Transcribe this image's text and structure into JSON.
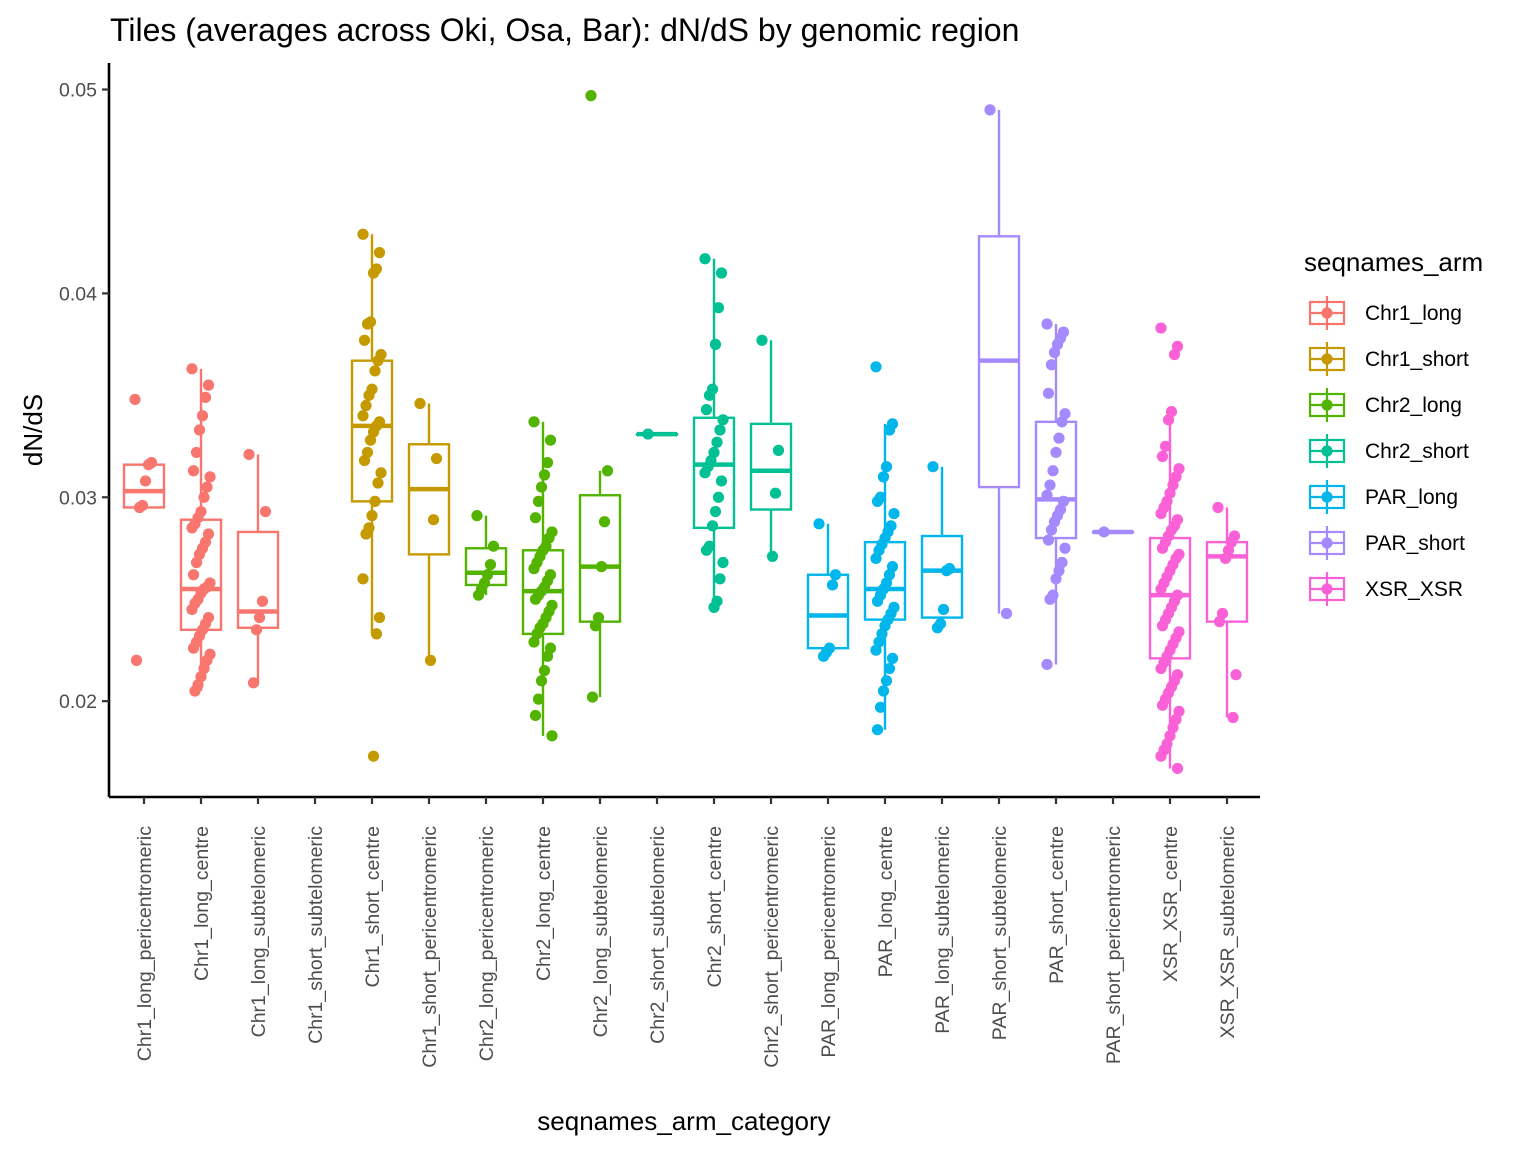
{
  "chart_data": {
    "type": "boxplot",
    "title": "Tiles (averages across Oki, Osa, Bar): dN/dS by genomic region",
    "xlabel": "seqnames_arm_category",
    "ylabel": "dN/dS",
    "ylim": [
      0.0153,
      0.0513
    ],
    "yticks": [
      0.02,
      0.03,
      0.04,
      0.05
    ],
    "ytick_labels": [
      "0.02",
      "0.03",
      "0.04",
      "0.05"
    ],
    "grid": false,
    "legend": {
      "title": "seqnames_arm",
      "position": "right",
      "entries": [
        {
          "name": "Chr1_long",
          "color": "#F8766D"
        },
        {
          "name": "Chr1_short",
          "color": "#C49A00"
        },
        {
          "name": "Chr2_long",
          "color": "#53B400"
        },
        {
          "name": "Chr2_short",
          "color": "#00C094"
        },
        {
          "name": "PAR_long",
          "color": "#00B6EB"
        },
        {
          "name": "PAR_short",
          "color": "#A58AFF"
        },
        {
          "name": "XSR_XSR",
          "color": "#FB61D7"
        }
      ]
    },
    "categories": [
      {
        "label": "Chr1_long_pericentromeric",
        "group": "Chr1_long",
        "box": {
          "lower": 0.0294,
          "q1": 0.0295,
          "median": 0.0303,
          "q3": 0.0316,
          "upper": 0.0316
        },
        "points": [
          0.0348,
          0.0317,
          0.0316,
          0.0308,
          0.0296,
          0.0295,
          0.022
        ]
      },
      {
        "label": "Chr1_long_centre",
        "group": "Chr1_long",
        "box": {
          "lower": 0.0205,
          "q1": 0.0235,
          "median": 0.0255,
          "q3": 0.0289,
          "upper": 0.0363
        },
        "points": [
          0.0363,
          0.0355,
          0.0349,
          0.034,
          0.0333,
          0.0322,
          0.0313,
          0.031,
          0.0305,
          0.03,
          0.0293,
          0.029,
          0.0287,
          0.0285,
          0.0282,
          0.0278,
          0.0275,
          0.0272,
          0.0268,
          0.0262,
          0.0258,
          0.0256,
          0.0255,
          0.0253,
          0.025,
          0.0248,
          0.0245,
          0.0241,
          0.0238,
          0.0235,
          0.0232,
          0.0229,
          0.0226,
          0.0223,
          0.022,
          0.0216,
          0.0212,
          0.0208,
          0.0205
        ]
      },
      {
        "label": "Chr1_long_subtelomeric",
        "group": "Chr1_long",
        "box": {
          "lower": 0.0209,
          "q1": 0.0236,
          "median": 0.0244,
          "q3": 0.0283,
          "upper": 0.0321
        },
        "points": [
          0.0321,
          0.0293,
          0.0249,
          0.0241,
          0.0235,
          0.0209
        ]
      },
      {
        "label": "Chr1_short_subtelomeric",
        "group": "Chr1_short",
        "box": null,
        "points": []
      },
      {
        "label": "Chr1_short_centre",
        "group": "Chr1_short",
        "box": {
          "lower": 0.0233,
          "q1": 0.0298,
          "median": 0.0335,
          "q3": 0.0367,
          "upper": 0.0429
        },
        "points": [
          0.0429,
          0.042,
          0.0412,
          0.041,
          0.0386,
          0.0385,
          0.0377,
          0.037,
          0.0367,
          0.0362,
          0.0353,
          0.035,
          0.0345,
          0.034,
          0.0337,
          0.0335,
          0.0332,
          0.0328,
          0.0322,
          0.0318,
          0.0312,
          0.0307,
          0.0298,
          0.0291,
          0.0285,
          0.0282,
          0.026,
          0.0241,
          0.0233,
          0.0173
        ]
      },
      {
        "label": "Chr1_short_pericentromeric",
        "group": "Chr1_short",
        "box": {
          "lower": 0.022,
          "q1": 0.0272,
          "median": 0.0304,
          "q3": 0.0326,
          "upper": 0.0346
        },
        "points": [
          0.0346,
          0.0319,
          0.0289,
          0.022
        ]
      },
      {
        "label": "Chr2_long_pericentromeric",
        "group": "Chr2_long",
        "box": {
          "lower": 0.0252,
          "q1": 0.0257,
          "median": 0.0263,
          "q3": 0.0275,
          "upper": 0.0291
        },
        "points": [
          0.0291,
          0.0276,
          0.0267,
          0.0262,
          0.0258,
          0.0255,
          0.0252
        ]
      },
      {
        "label": "Chr2_long_centre",
        "group": "Chr2_long",
        "box": {
          "lower": 0.0183,
          "q1": 0.0233,
          "median": 0.0254,
          "q3": 0.0274,
          "upper": 0.0337
        },
        "points": [
          0.0337,
          0.0328,
          0.0317,
          0.0311,
          0.0305,
          0.0298,
          0.029,
          0.0283,
          0.028,
          0.0276,
          0.0274,
          0.0271,
          0.0268,
          0.0265,
          0.0262,
          0.0259,
          0.0256,
          0.0254,
          0.0252,
          0.025,
          0.0247,
          0.0244,
          0.0241,
          0.0238,
          0.0236,
          0.0233,
          0.0229,
          0.0226,
          0.0222,
          0.0215,
          0.021,
          0.0201,
          0.0193,
          0.0183
        ]
      },
      {
        "label": "Chr2_long_subtelomeric",
        "group": "Chr2_long",
        "box": {
          "lower": 0.0202,
          "q1": 0.0239,
          "median": 0.0266,
          "q3": 0.0301,
          "upper": 0.0313
        },
        "points": [
          0.0497,
          0.0313,
          0.0288,
          0.0266,
          0.0241,
          0.0237,
          0.0202
        ]
      },
      {
        "label": "Chr2_short_subtelomeric",
        "group": "Chr2_short",
        "box": {
          "lower": 0.0331,
          "q1": 0.0331,
          "median": 0.0331,
          "q3": 0.0331,
          "upper": 0.0331
        },
        "points": [
          0.0331
        ]
      },
      {
        "label": "Chr2_short_centre",
        "group": "Chr2_short",
        "box": {
          "lower": 0.0246,
          "q1": 0.0285,
          "median": 0.0316,
          "q3": 0.0339,
          "upper": 0.0417
        },
        "points": [
          0.0417,
          0.041,
          0.0393,
          0.0375,
          0.0353,
          0.035,
          0.0343,
          0.0338,
          0.0333,
          0.0327,
          0.0322,
          0.0318,
          0.0315,
          0.0312,
          0.0308,
          0.03,
          0.0293,
          0.0286,
          0.0276,
          0.0274,
          0.0268,
          0.026,
          0.0249,
          0.0246
        ]
      },
      {
        "label": "Chr2_short_pericentromeric",
        "group": "Chr2_short",
        "box": {
          "lower": 0.0271,
          "q1": 0.0294,
          "median": 0.0313,
          "q3": 0.0336,
          "upper": 0.0377
        },
        "points": [
          0.0377,
          0.0323,
          0.0302,
          0.0271
        ]
      },
      {
        "label": "PAR_long_pericentromeric",
        "group": "PAR_long",
        "box": {
          "lower": 0.0222,
          "q1": 0.0226,
          "median": 0.0242,
          "q3": 0.0262,
          "upper": 0.0287
        },
        "points": [
          0.0287,
          0.0262,
          0.0257,
          0.0226,
          0.0224,
          0.0222
        ]
      },
      {
        "label": "PAR_long_centre",
        "group": "PAR_long",
        "box": {
          "lower": 0.0186,
          "q1": 0.024,
          "median": 0.0255,
          "q3": 0.0278,
          "upper": 0.0336
        },
        "points": [
          0.0364,
          0.0336,
          0.0333,
          0.0315,
          0.031,
          0.03,
          0.0298,
          0.0292,
          0.0286,
          0.0283,
          0.028,
          0.0277,
          0.0274,
          0.027,
          0.0266,
          0.0262,
          0.0258,
          0.0255,
          0.0252,
          0.0249,
          0.0246,
          0.0243,
          0.024,
          0.0237,
          0.0233,
          0.0229,
          0.0225,
          0.0221,
          0.0216,
          0.021,
          0.0205,
          0.0197,
          0.0186
        ]
      },
      {
        "label": "PAR_long_subtelomeric",
        "group": "PAR_long",
        "box": {
          "lower": 0.0236,
          "q1": 0.0241,
          "median": 0.0264,
          "q3": 0.0281,
          "upper": 0.0315
        },
        "points": [
          0.0315,
          0.0265,
          0.0264,
          0.0245,
          0.0238,
          0.0236
        ]
      },
      {
        "label": "PAR_short_subtelomeric",
        "group": "PAR_short",
        "box": {
          "lower": 0.0243,
          "q1": 0.0305,
          "median": 0.0367,
          "q3": 0.0428,
          "upper": 0.049
        },
        "points": [
          0.049,
          0.0243
        ]
      },
      {
        "label": "PAR_short_centre",
        "group": "PAR_short",
        "box": {
          "lower": 0.0218,
          "q1": 0.028,
          "median": 0.0299,
          "q3": 0.0337,
          "upper": 0.0385
        },
        "points": [
          0.0385,
          0.0381,
          0.0378,
          0.0375,
          0.0371,
          0.0365,
          0.0351,
          0.0341,
          0.0337,
          0.0329,
          0.0322,
          0.0313,
          0.0306,
          0.0301,
          0.0298,
          0.0294,
          0.0291,
          0.0288,
          0.0284,
          0.0279,
          0.0275,
          0.0268,
          0.0264,
          0.026,
          0.0252,
          0.025,
          0.0218
        ]
      },
      {
        "label": "PAR_short_pericentromeric",
        "group": "PAR_short",
        "box": {
          "lower": 0.0283,
          "q1": 0.0283,
          "median": 0.0283,
          "q3": 0.0283,
          "upper": 0.0283
        },
        "points": [
          0.0283
        ]
      },
      {
        "label": "XSR_XSR_centre",
        "group": "XSR_XSR",
        "box": {
          "lower": 0.0167,
          "q1": 0.0221,
          "median": 0.0252,
          "q3": 0.028,
          "upper": 0.0342
        },
        "points": [
          0.0383,
          0.0374,
          0.037,
          0.0342,
          0.0338,
          0.0325,
          0.032,
          0.0314,
          0.031,
          0.0306,
          0.0302,
          0.0298,
          0.0295,
          0.0292,
          0.0289,
          0.0286,
          0.0284,
          0.0281,
          0.0278,
          0.0275,
          0.0272,
          0.027,
          0.0267,
          0.0264,
          0.0261,
          0.0258,
          0.0255,
          0.0252,
          0.0249,
          0.0246,
          0.0243,
          0.024,
          0.0237,
          0.0234,
          0.0231,
          0.0228,
          0.0225,
          0.0222,
          0.0219,
          0.0216,
          0.0213,
          0.021,
          0.0207,
          0.0204,
          0.0201,
          0.0198,
          0.0195,
          0.0191,
          0.0187,
          0.0183,
          0.0179,
          0.0176,
          0.0173,
          0.0167
        ]
      },
      {
        "label": "XSR_XSR_subtelomeric",
        "group": "XSR_XSR",
        "box": {
          "lower": 0.0192,
          "q1": 0.0239,
          "median": 0.0271,
          "q3": 0.0278,
          "upper": 0.0295
        },
        "points": [
          0.0295,
          0.0281,
          0.0278,
          0.0274,
          0.027,
          0.0243,
          0.0239,
          0.0213,
          0.0192
        ]
      }
    ]
  }
}
